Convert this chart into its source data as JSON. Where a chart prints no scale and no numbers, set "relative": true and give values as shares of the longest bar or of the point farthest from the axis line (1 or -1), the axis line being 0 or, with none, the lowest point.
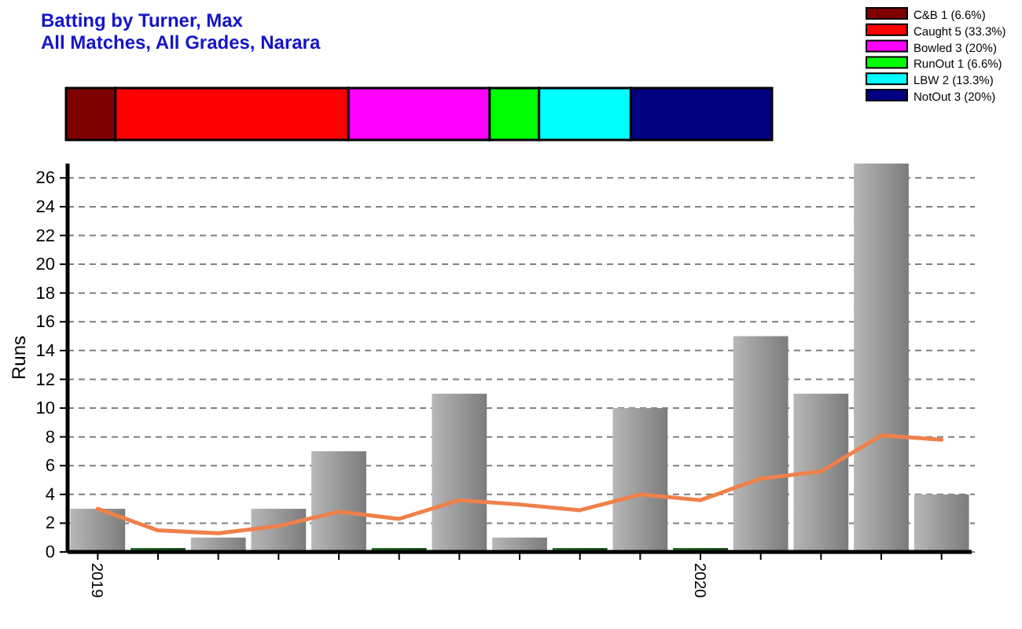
{
  "chart_data": [
    {
      "type": "bar",
      "title": "Batting by Turner, Max",
      "subtitle": "All Matches, All Grades, Narara",
      "orientation": "horizontal",
      "stacked": true,
      "relative": true,
      "categories": [
        null
      ],
      "tick_labels": false,
      "legend": "top right",
      "series": [
        {
          "name": "C&B 1 (6.6%)",
          "color": "#800000",
          "values": [
            0.07
          ]
        },
        {
          "name": "Caught 5 (33.3%)",
          "color": "#ff0000",
          "values": [
            0.33
          ]
        },
        {
          "name": "Bowled 3 (20%)",
          "color": "#ff00ff",
          "values": [
            0.2
          ]
        },
        {
          "name": "RunOut 1 (6.6%)",
          "color": "#00ff00",
          "values": [
            0.07
          ]
        },
        {
          "name": "LBW 2 (13.3%)",
          "color": "#00ffff",
          "values": [
            0.13
          ]
        },
        {
          "name": "NotOut 3 (20%)",
          "color": "#000080",
          "values": [
            0.2
          ]
        }
      ]
    },
    {
      "type": "bar",
      "ylabel": "Runs",
      "categories": [
        "2019",
        null,
        null,
        null,
        null,
        null,
        null,
        null,
        null,
        null,
        "2020",
        null,
        null,
        null,
        null
      ],
      "ylim": [
        0,
        27
      ],
      "yticks": [
        0,
        2,
        4,
        6,
        8,
        10,
        12,
        14,
        16,
        18,
        20,
        22,
        24,
        26
      ],
      "grid": "y",
      "series": [
        {
          "type": "bar",
          "colors": [
            "#999999",
            "#1e5c1e",
            "#999999",
            "#999999",
            "#999999",
            "#1e5c1e",
            "#999999",
            "#999999",
            "#1e5c1e",
            "#999999",
            "#1e5c1e",
            "#999999",
            "#999999",
            "#999999",
            "#999999"
          ],
          "values": [
            3,
            0,
            1,
            3,
            7,
            0,
            11,
            1,
            0,
            10,
            0,
            15,
            11,
            27,
            4
          ]
        },
        {
          "type": "line",
          "color": "#f0804a",
          "values": [
            3,
            1.5,
            1.3,
            1.8,
            2.8,
            2.3,
            3.6,
            3.3,
            2.9,
            4.0,
            3.6,
            5.1,
            5.6,
            8.1,
            7.8
          ]
        }
      ]
    }
  ]
}
